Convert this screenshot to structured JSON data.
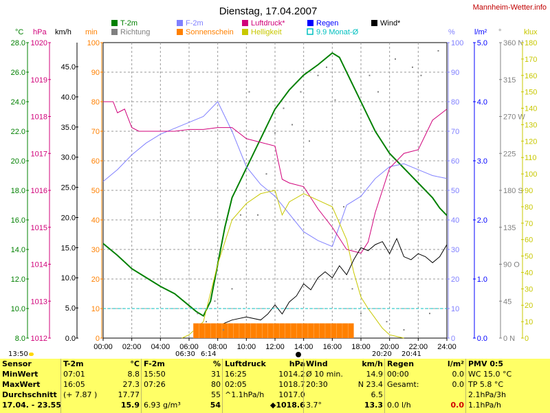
{
  "header": {
    "title": "Dienstag, 17.04.2007",
    "site": "Mannheim-Wetter.info"
  },
  "legend": [
    {
      "label": "T-2m",
      "color": "#008000"
    },
    {
      "label": "Richtung",
      "color": "#808080"
    },
    {
      "label": "F-2m",
      "color": "#8080ff"
    },
    {
      "label": "Sonnenschein",
      "color": "#ff8000"
    },
    {
      "label": "Luftdruck*",
      "color": "#d0007a"
    },
    {
      "label": "Helligkeit",
      "color": "#c8c800"
    },
    {
      "label": "Regen",
      "color": "#0000ff"
    },
    {
      "label": "9.9 Monat-Ø",
      "color": "#00c0c0"
    },
    {
      "label": "Wind*",
      "color": "#000000"
    }
  ],
  "axis_headers": {
    "temp": "°C",
    "pressure": "hPa",
    "wind": "km/h",
    "sun": "min",
    "humidity": "%",
    "rain": "l/m²",
    "direction": "°",
    "light": "klux"
  },
  "timebar": {
    "now": "13:50",
    "sunrise": "06:30",
    "sunrise2": "6:14",
    "sunset": "20:20",
    "sunset2": "20:41"
  },
  "chart_data": {
    "type": "line",
    "x_ticks": [
      "00:00",
      "02:00",
      "04:00",
      "06:00",
      "08:00",
      "10:00",
      "12:00",
      "14:00",
      "16:00",
      "18:00",
      "20:00",
      "22:00",
      "24:00"
    ],
    "axes": {
      "temp_C": {
        "range": [
          8,
          28
        ],
        "ticks": [
          "28.0",
          "26.0",
          "24.0",
          "22.0",
          "20.0",
          "18.0",
          "16.0",
          "14.0",
          "12.0",
          "10.0",
          "8.0"
        ]
      },
      "pressure_hPa": {
        "range": [
          1012,
          1020
        ],
        "ticks": [
          "1020",
          "1019",
          "1018",
          "1017",
          "1016",
          "1015",
          "1014",
          "1013",
          "1012"
        ]
      },
      "wind_kmh": {
        "range": [
          0,
          49
        ],
        "ticks": [
          "45.0",
          "40.0",
          "35.0",
          "30.0",
          "25.0",
          "20.0",
          "15.0",
          "10.0",
          "5.0",
          "0.0"
        ]
      },
      "sun_min": {
        "range": [
          0,
          100
        ],
        "ticks": [
          "100",
          "90",
          "80",
          "70",
          "60",
          "50",
          "40",
          "30",
          "20",
          "10",
          "0"
        ]
      },
      "humidity_pct": {
        "range": [
          0,
          100
        ],
        "ticks": [
          "100",
          "90",
          "80",
          "70",
          "60",
          "50",
          "40",
          "30",
          "20",
          "10",
          "0"
        ]
      },
      "rain_lm2": {
        "range": [
          0,
          5
        ],
        "ticks": [
          "5.0",
          "4.0",
          "3.0",
          "2.0",
          "1.0",
          "0.0"
        ]
      },
      "direction_deg": {
        "range": [
          0,
          360
        ],
        "ticks": [
          "360 N",
          "315",
          "270 W",
          "225",
          "180 S",
          "135",
          "90 O",
          "45",
          "0 N"
        ]
      },
      "light_klux": {
        "range": [
          0,
          180
        ],
        "ticks": [
          "180",
          "170",
          "160",
          "150",
          "140",
          "130",
          "120",
          "110",
          "100",
          "90",
          "80",
          "70",
          "60",
          "50",
          "40",
          "30",
          "20",
          "10",
          "0"
        ]
      }
    },
    "series": [
      {
        "name": "T-2m",
        "axis": "temp_C",
        "color": "#008000",
        "x": [
          0,
          1,
          2,
          3,
          4,
          5,
          6,
          6.5,
          7,
          7.5,
          8,
          8.5,
          9,
          9.5,
          10,
          10.5,
          11,
          11.5,
          12,
          13,
          14,
          15,
          16,
          16.5,
          17,
          18,
          19,
          20,
          21,
          22,
          23,
          23.5,
          24
        ],
        "y": [
          14.4,
          13.6,
          12.7,
          12.1,
          11.5,
          11.0,
          10.2,
          9.8,
          9.5,
          10.5,
          13.0,
          15.5,
          17.5,
          18.5,
          19.5,
          20.5,
          21.5,
          22.5,
          23.5,
          24.8,
          25.8,
          26.5,
          27.3,
          27.0,
          26.0,
          24.0,
          22.0,
          20.5,
          19.5,
          18.5,
          17.5,
          16.8,
          16.3
        ]
      },
      {
        "name": "F-2m",
        "axis": "humidity_pct",
        "color": "#8080ff",
        "x": [
          0,
          1,
          2,
          3,
          4,
          5,
          6,
          7,
          8,
          9,
          10,
          11,
          12,
          13,
          14,
          15,
          16,
          17,
          18,
          19,
          20,
          21,
          22,
          23,
          24
        ],
        "y": [
          53,
          57,
          62,
          66,
          69,
          71,
          73,
          75,
          80,
          70,
          58,
          52,
          48,
          42,
          36,
          33,
          31,
          45,
          48,
          54,
          58,
          59,
          57,
          55,
          54
        ]
      },
      {
        "name": "Luftdruck*",
        "axis": "pressure_hPa",
        "color": "#d0007a",
        "x": [
          0,
          0.7,
          1,
          1.5,
          2,
          2.5,
          3,
          4,
          5,
          6,
          7,
          8,
          9,
          10,
          11,
          12,
          12.5,
          13,
          14,
          15,
          16,
          17,
          18,
          18.5,
          19,
          20,
          21,
          22,
          23,
          24
        ],
        "y": [
          1018.4,
          1018.4,
          1018.1,
          1018.2,
          1017.7,
          1017.6,
          1017.6,
          1017.6,
          1017.6,
          1017.65,
          1017.65,
          1017.7,
          1017.7,
          1017.4,
          1017.3,
          1017.2,
          1016.3,
          1016.2,
          1016.1,
          1015.5,
          1015.0,
          1014.4,
          1014.3,
          1014.6,
          1015.4,
          1016.6,
          1017.0,
          1017.1,
          1017.9,
          1018.2
        ]
      },
      {
        "name": "Helligkeit",
        "axis": "light_klux",
        "color": "#c8c800",
        "x": [
          5.5,
          6,
          7,
          8,
          9,
          10,
          11,
          12,
          12.5,
          13,
          14,
          15,
          16,
          16.5,
          17,
          17.5,
          18,
          18.5,
          19,
          19.5,
          20,
          20.5,
          21
        ],
        "y": [
          0,
          2,
          10,
          45,
          72,
          82,
          88,
          90,
          75,
          83,
          88,
          84,
          80,
          70,
          60,
          40,
          25,
          18,
          12,
          6,
          2,
          1,
          0
        ]
      },
      {
        "name": "Wind*",
        "axis": "wind_kmh",
        "color": "#000000",
        "x": [
          7,
          8,
          9,
          10,
          11,
          11.5,
          12,
          12.5,
          13,
          13.5,
          14,
          14.5,
          15,
          15.5,
          16,
          16.5,
          17,
          17.5,
          18,
          18.5,
          19,
          19.5,
          20,
          20.5,
          21,
          21.5,
          22,
          22.5,
          23,
          23.5,
          24
        ],
        "y": [
          0.5,
          2.0,
          3.0,
          3.5,
          3.0,
          4.0,
          5.5,
          4.0,
          6.0,
          7.0,
          9.0,
          8.0,
          10.0,
          11.0,
          10.0,
          12.0,
          10.5,
          13.0,
          15.0,
          14.5,
          15.5,
          16.0,
          14.0,
          16.5,
          13.5,
          13.0,
          14.0,
          13.5,
          12.5,
          13.5,
          15.5
        ]
      },
      {
        "name": "Sonnenschein",
        "axis": "sun_min",
        "color": "#ff8000",
        "style": "bar",
        "x_range": [
          6.3,
          17.5
        ],
        "value": 5
      },
      {
        "name": "9.9 Monat-Ø",
        "axis": "rain_lm2",
        "color": "#00c0c0",
        "style": "dashed",
        "value": 0.5
      }
    ],
    "scatter": {
      "name": "Richtung",
      "axis": "direction_deg",
      "color": "#808080",
      "x": [
        0.3,
        6.6,
        7.2,
        7.8,
        8.4,
        9.0,
        9.6,
        10.2,
        10.8,
        11.4,
        12.0,
        12.6,
        13.2,
        13.8,
        14.4,
        15.0,
        15.6,
        16.2,
        16.8,
        17.4,
        18.0,
        18.6,
        19.2,
        19.8,
        20.4,
        21.0,
        21.6,
        22.2,
        22.8,
        23.4
      ],
      "y": [
        0,
        30,
        20,
        45,
        10,
        60,
        150,
        300,
        150,
        200,
        250,
        280,
        260,
        300,
        240,
        320,
        330,
        290,
        160,
        60,
        30,
        320,
        300,
        20,
        340,
        10,
        330,
        320,
        30,
        350
      ]
    }
  },
  "footer": {
    "sensor": {
      "title": "Sensor",
      "rows": [
        "MinWert",
        "MaxWert",
        "Durchschnitt",
        "17.04. - 23.55"
      ]
    },
    "t2m": {
      "title": "T-2m",
      "unit": "°C",
      "rows": [
        [
          "07:01",
          "8.8"
        ],
        [
          "16:05",
          "27.3"
        ],
        [
          "(+ 7.87 )",
          "17.77"
        ],
        [
          "",
          "15.9"
        ]
      ]
    },
    "f2m": {
      "title": "F-2m",
      "unit": "%",
      "rows": [
        [
          "15:50",
          "31"
        ],
        [
          "07:26",
          "80"
        ],
        [
          "",
          "55"
        ],
        [
          "6.93 g/m³",
          "54"
        ]
      ]
    },
    "pressure": {
      "title": "Luftdruck",
      "unit": "hPa",
      "rows": [
        [
          "16:25",
          "1014.2"
        ],
        [
          "02:05",
          "1018.7"
        ],
        [
          "^1.1hPa/h",
          "1017.0"
        ],
        [
          "",
          "◆1018.6"
        ]
      ]
    },
    "wind": {
      "title": "Wind",
      "unit": "km/h",
      "rows": [
        [
          "Ø 10 min.",
          "14.9"
        ],
        [
          "20:30",
          "N 23.4"
        ],
        [
          "",
          "6.5"
        ],
        [
          "3.7°",
          "13.3"
        ]
      ]
    },
    "rain": {
      "title": "Regen",
      "unit": "l/m²",
      "rows": [
        [
          "00:00",
          "0.0"
        ],
        [
          "Gesamt:",
          "0.0"
        ],
        [
          "0.0 l/h",
          "0.0"
        ]
      ]
    },
    "pmv": {
      "title": "PMV 0:5",
      "rows": [
        "WC 15.0 °C",
        "TP 5.8 °C",
        "2.1hPa/3h",
        "1.1hPa/h"
      ]
    }
  }
}
